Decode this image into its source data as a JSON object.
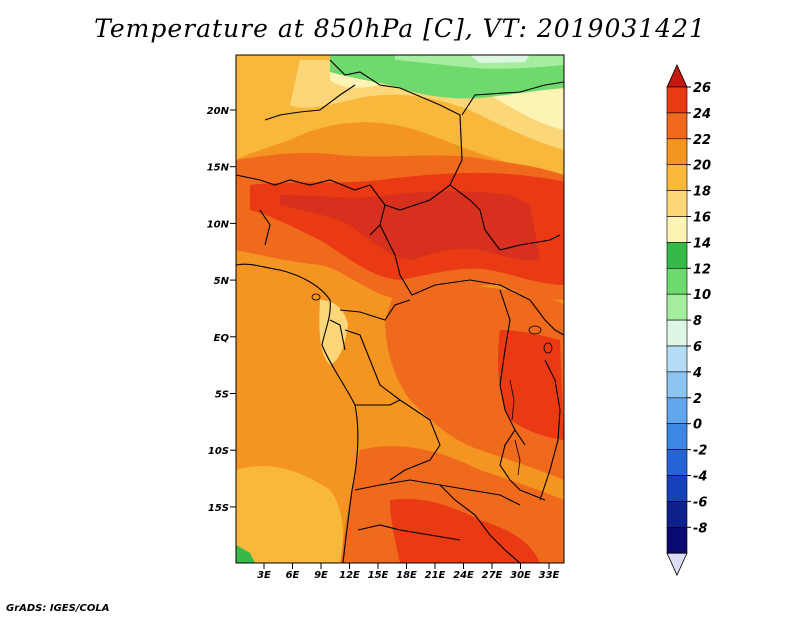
{
  "title": "Temperature at 850hPa [C], VT: 2019031421",
  "footer": "GrADS: IGES/COLA",
  "map": {
    "lat_labels": [
      "20N",
      "15N",
      "10N",
      "5N",
      "EQ",
      "5S",
      "10S",
      "15S"
    ],
    "lon_labels": [
      "3E",
      "6E",
      "9E",
      "12E",
      "15E",
      "18E",
      "21E",
      "24E",
      "27E",
      "30E",
      "33E"
    ],
    "variable": "Temperature at 850hPa",
    "units": "C"
  },
  "colorbar": {
    "labels": [
      "26",
      "24",
      "22",
      "20",
      "18",
      "16",
      "14",
      "12",
      "10",
      "8",
      "6",
      "4",
      "2",
      "0",
      "-2",
      "-4",
      "-6",
      "-8"
    ],
    "colors": [
      "#d7301f",
      "#ea3a14",
      "#f06a1e",
      "#f49521",
      "#f8b83c",
      "#fcd77a",
      "#fdf3b5",
      "#37b94a",
      "#6ed96c",
      "#a5ee9f",
      "#def7e4",
      "#b5dcf7",
      "#8cc4f2",
      "#61a6ec",
      "#3d87e3",
      "#2563d6",
      "#1641b8",
      "#0c218a",
      "#0a0a70"
    ],
    "top_arrow_color": "#c41a10",
    "bottom_arrow_color": "#dcdcf5"
  }
}
